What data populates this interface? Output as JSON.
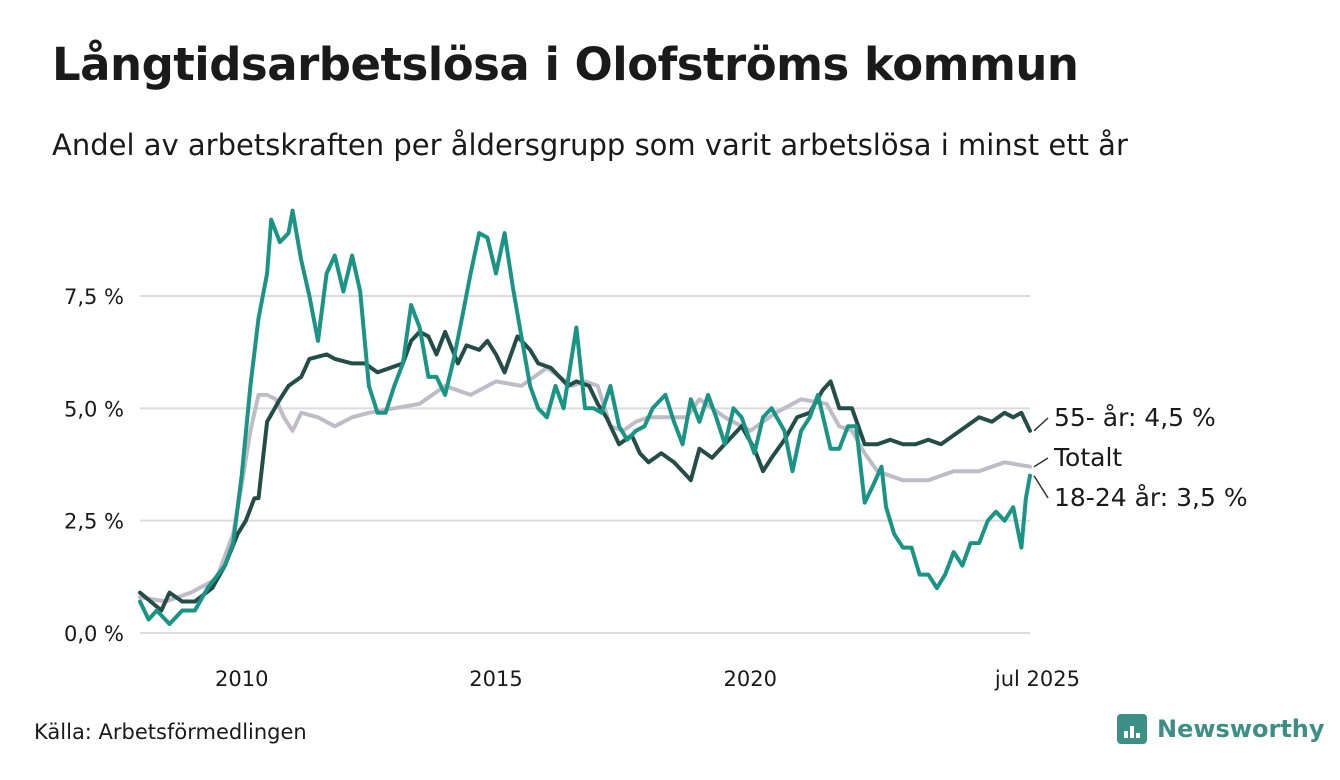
{
  "title": "Långtidsarbetslösa i Olofströms kommun",
  "subtitle": "Andel av arbetskraften per åldersgrupp som varit arbetslösa i minst ett år",
  "source": "Källa: Arbetsförmedlingen",
  "brand": "Newsworthy",
  "colors": {
    "y18_24": "#1a9484",
    "y55": "#244d48",
    "total": "#bfbcc8",
    "grid": "#dcdcdc",
    "brand": "#3d8f86"
  },
  "chart_data": {
    "type": "line",
    "x_unit": "year",
    "xlim": [
      2008.0,
      2025.5
    ],
    "ylim": [
      0,
      9.6
    ],
    "y_ticks": [
      {
        "value": 0,
        "label": "0,0 %"
      },
      {
        "value": 2.5,
        "label": "2,5 %"
      },
      {
        "value": 5,
        "label": "5,0 %"
      },
      {
        "value": 7.5,
        "label": "7,5 %"
      }
    ],
    "x_ticks": [
      {
        "value": 2010,
        "label": "2010"
      },
      {
        "value": 2015,
        "label": "2015"
      },
      {
        "value": 2020,
        "label": "2020"
      },
      {
        "value": 2025.5,
        "label": "jul 2025"
      }
    ],
    "grid": true,
    "series": [
      {
        "key": "total",
        "name": "Totalt",
        "label": "Totalt",
        "points": [
          [
            2008.0,
            0.8
          ],
          [
            2008.5,
            0.7
          ],
          [
            2009.0,
            0.9
          ],
          [
            2009.5,
            1.2
          ],
          [
            2009.83,
            2.2
          ],
          [
            2010.0,
            3.3
          ],
          [
            2010.17,
            4.5
          ],
          [
            2010.33,
            5.3
          ],
          [
            2010.5,
            5.3
          ],
          [
            2010.67,
            5.2
          ],
          [
            2010.83,
            4.8
          ],
          [
            2011.0,
            4.5
          ],
          [
            2011.17,
            4.9
          ],
          [
            2011.5,
            4.8
          ],
          [
            2011.83,
            4.6
          ],
          [
            2012.17,
            4.8
          ],
          [
            2012.5,
            4.9
          ],
          [
            2013.0,
            5.0
          ],
          [
            2013.5,
            5.1
          ],
          [
            2014.0,
            5.5
          ],
          [
            2014.5,
            5.3
          ],
          [
            2015.0,
            5.6
          ],
          [
            2015.5,
            5.5
          ],
          [
            2016.0,
            5.9
          ],
          [
            2016.25,
            5.7
          ],
          [
            2016.5,
            5.5
          ],
          [
            2016.75,
            5.6
          ],
          [
            2017.0,
            5.5
          ],
          [
            2017.25,
            4.6
          ],
          [
            2017.5,
            4.5
          ],
          [
            2017.75,
            4.7
          ],
          [
            2018.0,
            4.8
          ],
          [
            2018.5,
            4.8
          ],
          [
            2018.75,
            4.8
          ],
          [
            2019.0,
            5.2
          ],
          [
            2019.5,
            4.8
          ],
          [
            2020.0,
            4.5
          ],
          [
            2020.5,
            4.9
          ],
          [
            2021.0,
            5.2
          ],
          [
            2021.5,
            5.1
          ],
          [
            2021.75,
            4.6
          ],
          [
            2022.0,
            4.5
          ],
          [
            2022.25,
            4.0
          ],
          [
            2022.5,
            3.6
          ],
          [
            2022.75,
            3.5
          ],
          [
            2023.0,
            3.4
          ],
          [
            2023.5,
            3.4
          ],
          [
            2024.0,
            3.6
          ],
          [
            2024.5,
            3.6
          ],
          [
            2025.0,
            3.8
          ],
          [
            2025.5,
            3.7
          ]
        ]
      },
      {
        "key": "y55",
        "name": "55- år",
        "label": "55- år: 4,5 %",
        "points": [
          [
            2008.0,
            0.9
          ],
          [
            2008.42,
            0.5
          ],
          [
            2008.58,
            0.9
          ],
          [
            2008.83,
            0.7
          ],
          [
            2009.08,
            0.7
          ],
          [
            2009.42,
            1.0
          ],
          [
            2009.67,
            1.5
          ],
          [
            2009.92,
            2.2
          ],
          [
            2010.08,
            2.5
          ],
          [
            2010.25,
            3.0
          ],
          [
            2010.33,
            3.0
          ],
          [
            2010.5,
            4.7
          ],
          [
            2010.75,
            5.2
          ],
          [
            2010.92,
            5.5
          ],
          [
            2011.17,
            5.7
          ],
          [
            2011.33,
            6.1
          ],
          [
            2011.67,
            6.2
          ],
          [
            2011.83,
            6.1
          ],
          [
            2012.17,
            6.0
          ],
          [
            2012.42,
            6.0
          ],
          [
            2012.67,
            5.8
          ],
          [
            2012.92,
            5.9
          ],
          [
            2013.17,
            6.0
          ],
          [
            2013.33,
            6.5
          ],
          [
            2013.5,
            6.7
          ],
          [
            2013.67,
            6.6
          ],
          [
            2013.83,
            6.2
          ],
          [
            2014.0,
            6.7
          ],
          [
            2014.25,
            6.0
          ],
          [
            2014.42,
            6.4
          ],
          [
            2014.67,
            6.3
          ],
          [
            2014.83,
            6.5
          ],
          [
            2015.0,
            6.2
          ],
          [
            2015.17,
            5.8
          ],
          [
            2015.42,
            6.6
          ],
          [
            2015.67,
            6.3
          ],
          [
            2015.83,
            6.0
          ],
          [
            2016.08,
            5.9
          ],
          [
            2016.25,
            5.7
          ],
          [
            2016.42,
            5.5
          ],
          [
            2016.58,
            5.6
          ],
          [
            2016.83,
            5.5
          ],
          [
            2017.0,
            5.1
          ],
          [
            2017.17,
            4.8
          ],
          [
            2017.42,
            4.2
          ],
          [
            2017.67,
            4.4
          ],
          [
            2017.83,
            4.0
          ],
          [
            2018.0,
            3.8
          ],
          [
            2018.25,
            4.0
          ],
          [
            2018.5,
            3.8
          ],
          [
            2018.75,
            3.5
          ],
          [
            2018.83,
            3.4
          ],
          [
            2019.0,
            4.1
          ],
          [
            2019.25,
            3.9
          ],
          [
            2019.58,
            4.3
          ],
          [
            2019.83,
            4.6
          ],
          [
            2020.08,
            4.1
          ],
          [
            2020.25,
            3.6
          ],
          [
            2020.42,
            3.9
          ],
          [
            2020.67,
            4.3
          ],
          [
            2020.92,
            4.8
          ],
          [
            2021.17,
            4.9
          ],
          [
            2021.42,
            5.4
          ],
          [
            2021.58,
            5.6
          ],
          [
            2021.75,
            5.0
          ],
          [
            2022.0,
            5.0
          ],
          [
            2022.25,
            4.2
          ],
          [
            2022.5,
            4.2
          ],
          [
            2022.75,
            4.3
          ],
          [
            2023.0,
            4.2
          ],
          [
            2023.25,
            4.2
          ],
          [
            2023.5,
            4.3
          ],
          [
            2023.75,
            4.2
          ],
          [
            2024.0,
            4.4
          ],
          [
            2024.25,
            4.6
          ],
          [
            2024.5,
            4.8
          ],
          [
            2024.75,
            4.7
          ],
          [
            2025.0,
            4.9
          ],
          [
            2025.17,
            4.8
          ],
          [
            2025.33,
            4.9
          ],
          [
            2025.5,
            4.5
          ]
        ]
      },
      {
        "key": "y18_24",
        "name": "18-24 år",
        "label": "18-24 år: 3,5 %",
        "points": [
          [
            2008.0,
            0.7
          ],
          [
            2008.17,
            0.3
          ],
          [
            2008.33,
            0.5
          ],
          [
            2008.58,
            0.2
          ],
          [
            2008.83,
            0.5
          ],
          [
            2009.08,
            0.5
          ],
          [
            2009.33,
            1.0
          ],
          [
            2009.67,
            1.5
          ],
          [
            2009.83,
            2.0
          ],
          [
            2010.0,
            3.5
          ],
          [
            2010.17,
            5.5
          ],
          [
            2010.33,
            7.0
          ],
          [
            2010.5,
            8.0
          ],
          [
            2010.58,
            9.2
          ],
          [
            2010.75,
            8.7
          ],
          [
            2010.92,
            8.9
          ],
          [
            2011.0,
            9.4
          ],
          [
            2011.17,
            8.3
          ],
          [
            2011.33,
            7.5
          ],
          [
            2011.5,
            6.5
          ],
          [
            2011.67,
            8.0
          ],
          [
            2011.83,
            8.4
          ],
          [
            2012.0,
            7.6
          ],
          [
            2012.17,
            8.4
          ],
          [
            2012.33,
            7.6
          ],
          [
            2012.5,
            5.5
          ],
          [
            2012.67,
            4.9
          ],
          [
            2012.83,
            4.9
          ],
          [
            2013.0,
            5.5
          ],
          [
            2013.17,
            6.0
          ],
          [
            2013.33,
            7.3
          ],
          [
            2013.5,
            6.8
          ],
          [
            2013.67,
            5.7
          ],
          [
            2013.83,
            5.7
          ],
          [
            2014.0,
            5.3
          ],
          [
            2014.17,
            6.1
          ],
          [
            2014.33,
            7.0
          ],
          [
            2014.5,
            8.0
          ],
          [
            2014.67,
            8.9
          ],
          [
            2014.83,
            8.8
          ],
          [
            2015.0,
            8.0
          ],
          [
            2015.17,
            8.9
          ],
          [
            2015.33,
            7.7
          ],
          [
            2015.5,
            6.6
          ],
          [
            2015.67,
            5.5
          ],
          [
            2015.83,
            5.0
          ],
          [
            2016.0,
            4.8
          ],
          [
            2016.17,
            5.5
          ],
          [
            2016.33,
            5.0
          ],
          [
            2016.58,
            6.8
          ],
          [
            2016.75,
            5.0
          ],
          [
            2016.92,
            5.0
          ],
          [
            2017.08,
            4.9
          ],
          [
            2017.25,
            5.5
          ],
          [
            2017.42,
            4.6
          ],
          [
            2017.58,
            4.3
          ],
          [
            2017.75,
            4.5
          ],
          [
            2017.92,
            4.6
          ],
          [
            2018.08,
            5.0
          ],
          [
            2018.33,
            5.3
          ],
          [
            2018.5,
            4.7
          ],
          [
            2018.67,
            4.2
          ],
          [
            2018.83,
            5.2
          ],
          [
            2019.0,
            4.7
          ],
          [
            2019.17,
            5.3
          ],
          [
            2019.33,
            4.8
          ],
          [
            2019.5,
            4.2
          ],
          [
            2019.67,
            5.0
          ],
          [
            2019.83,
            4.8
          ],
          [
            2020.08,
            4.0
          ],
          [
            2020.25,
            4.8
          ],
          [
            2020.42,
            5.0
          ],
          [
            2020.67,
            4.5
          ],
          [
            2020.83,
            3.6
          ],
          [
            2021.0,
            4.5
          ],
          [
            2021.17,
            4.8
          ],
          [
            2021.33,
            5.3
          ],
          [
            2021.58,
            4.1
          ],
          [
            2021.75,
            4.1
          ],
          [
            2021.92,
            4.6
          ],
          [
            2022.08,
            4.6
          ],
          [
            2022.25,
            2.9
          ],
          [
            2022.42,
            3.3
          ],
          [
            2022.58,
            3.7
          ],
          [
            2022.67,
            2.8
          ],
          [
            2022.83,
            2.2
          ],
          [
            2023.0,
            1.9
          ],
          [
            2023.17,
            1.9
          ],
          [
            2023.33,
            1.3
          ],
          [
            2023.5,
            1.3
          ],
          [
            2023.67,
            1.0
          ],
          [
            2023.83,
            1.3
          ],
          [
            2024.0,
            1.8
          ],
          [
            2024.17,
            1.5
          ],
          [
            2024.33,
            2.0
          ],
          [
            2024.5,
            2.0
          ],
          [
            2024.67,
            2.5
          ],
          [
            2024.83,
            2.7
          ],
          [
            2025.0,
            2.5
          ],
          [
            2025.17,
            2.8
          ],
          [
            2025.33,
            1.9
          ],
          [
            2025.42,
            3.0
          ],
          [
            2025.5,
            3.5
          ]
        ]
      }
    ]
  }
}
